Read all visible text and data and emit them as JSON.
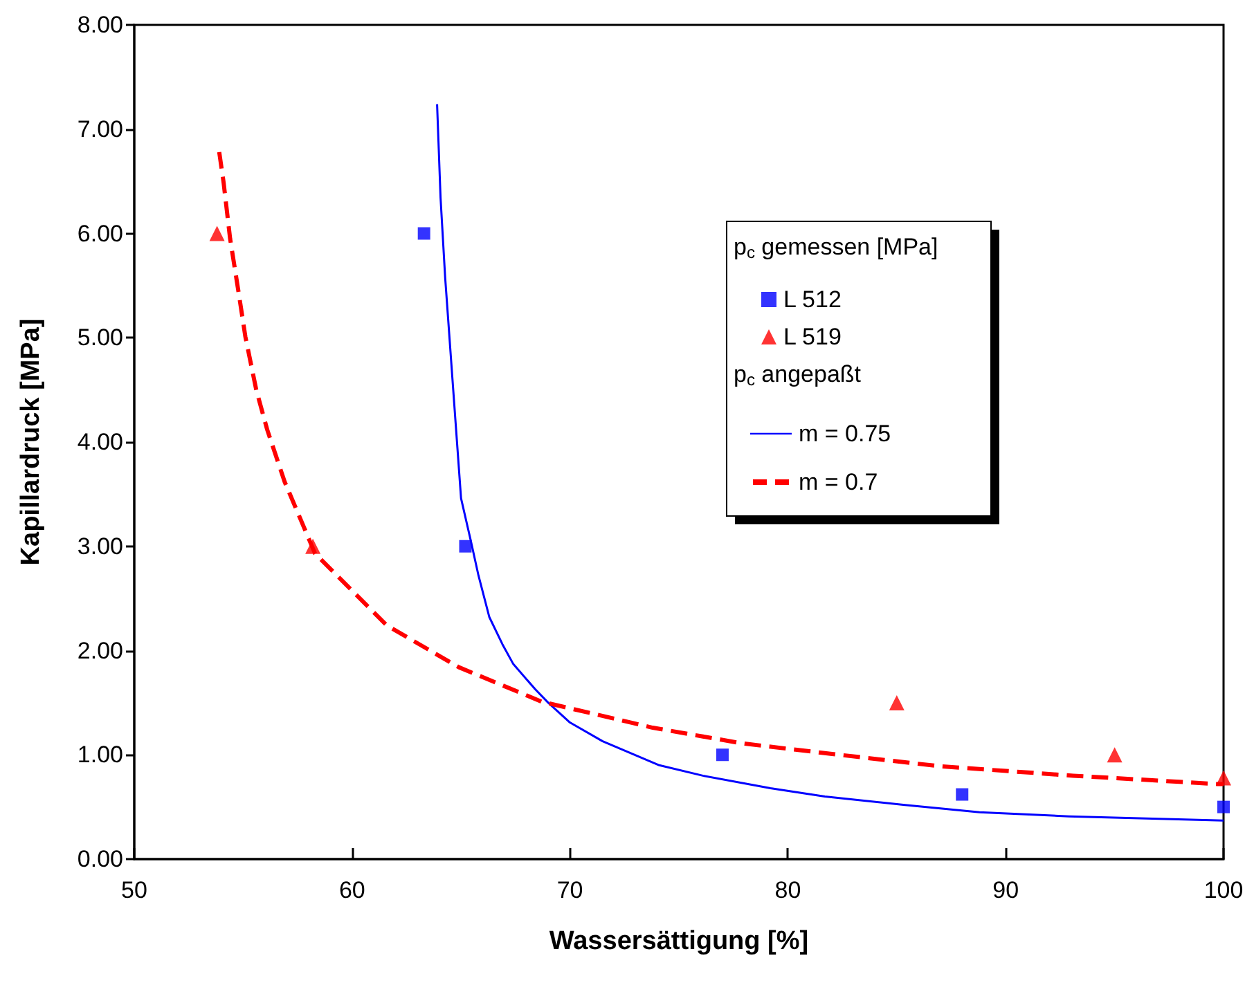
{
  "chart_data": {
    "type": "scatter",
    "xlabel": "Wassersättigung [%]",
    "ylabel": "Kapillardruck [MPa]",
    "legend_title": "p$_{c}$ gemessen [MPa]",
    "annotations": [
      "p$_{c}$ angepaßt"
    ],
    "legend": "right",
    "grid": false,
    "xlim": [
      50,
      100
    ],
    "xticks": [
      50,
      60,
      70,
      80,
      90,
      100
    ],
    "ylim": [
      0,
      8
    ],
    "yticks": [
      {
        "value": 0,
        "label": "0.00"
      },
      {
        "value": 1,
        "label": "1.00"
      },
      {
        "value": 2,
        "label": "2.00"
      },
      {
        "value": 3,
        "label": "3.00"
      },
      {
        "value": 4,
        "label": "4.00"
      },
      {
        "value": 5,
        "label": "5.00"
      },
      {
        "value": 6,
        "label": "6.00"
      },
      {
        "value": 7,
        "label": "7.00"
      },
      {
        "value": 8,
        "label": "8.00"
      }
    ],
    "series": [
      {
        "name": "L 512",
        "marker": "square",
        "color": "#0000ff",
        "x": [
          63.3,
          65.2,
          77,
          88,
          100
        ],
        "values": [
          6.0,
          3.0,
          1.0,
          0.62,
          0.5
        ]
      },
      {
        "name": "L 519",
        "marker": "triangle",
        "color": "#ff0000",
        "x": [
          53.8,
          58.2,
          85,
          95,
          100
        ],
        "values": [
          6.0,
          3.0,
          1.5,
          1.0,
          0.78
        ]
      },
      {
        "name": "m = 0.75",
        "type": "line",
        "marker": "none",
        "line_style": "solid",
        "color": "#0000ff",
        "x": [
          63.9,
          64.06,
          64.27,
          64.6,
          65.0,
          65.44,
          65.8,
          66.3,
          66.9,
          67.4,
          68.4,
          69.0,
          70.0,
          71.5,
          74.1,
          76.1,
          79.2,
          81.7,
          85.3,
          88.8,
          92.9,
          100
        ],
        "values": [
          7.24,
          6.34,
          5.58,
          4.62,
          3.46,
          3.06,
          2.72,
          2.32,
          2.06,
          1.87,
          1.63,
          1.5,
          1.31,
          1.13,
          0.9,
          0.8,
          0.68,
          0.6,
          0.52,
          0.45,
          0.41,
          0.37
        ]
      },
      {
        "name": "m = 0.7",
        "type": "line",
        "marker": "none",
        "line_style": "dashed",
        "color": "#ff0000",
        "x": [
          53.9,
          54.1,
          54.4,
          54.8,
          55.1,
          55.6,
          56.1,
          56.9,
          58.3,
          61.6,
          64.9,
          68.7,
          73.8,
          77.9,
          81.96,
          87.0,
          93.1,
          99.7,
          100
        ],
        "values": [
          6.78,
          6.49,
          5.95,
          5.42,
          5.01,
          4.5,
          4.12,
          3.62,
          2.93,
          2.24,
          1.84,
          1.51,
          1.26,
          1.11,
          1.01,
          0.89,
          0.8,
          0.72,
          0.72
        ]
      }
    ]
  }
}
